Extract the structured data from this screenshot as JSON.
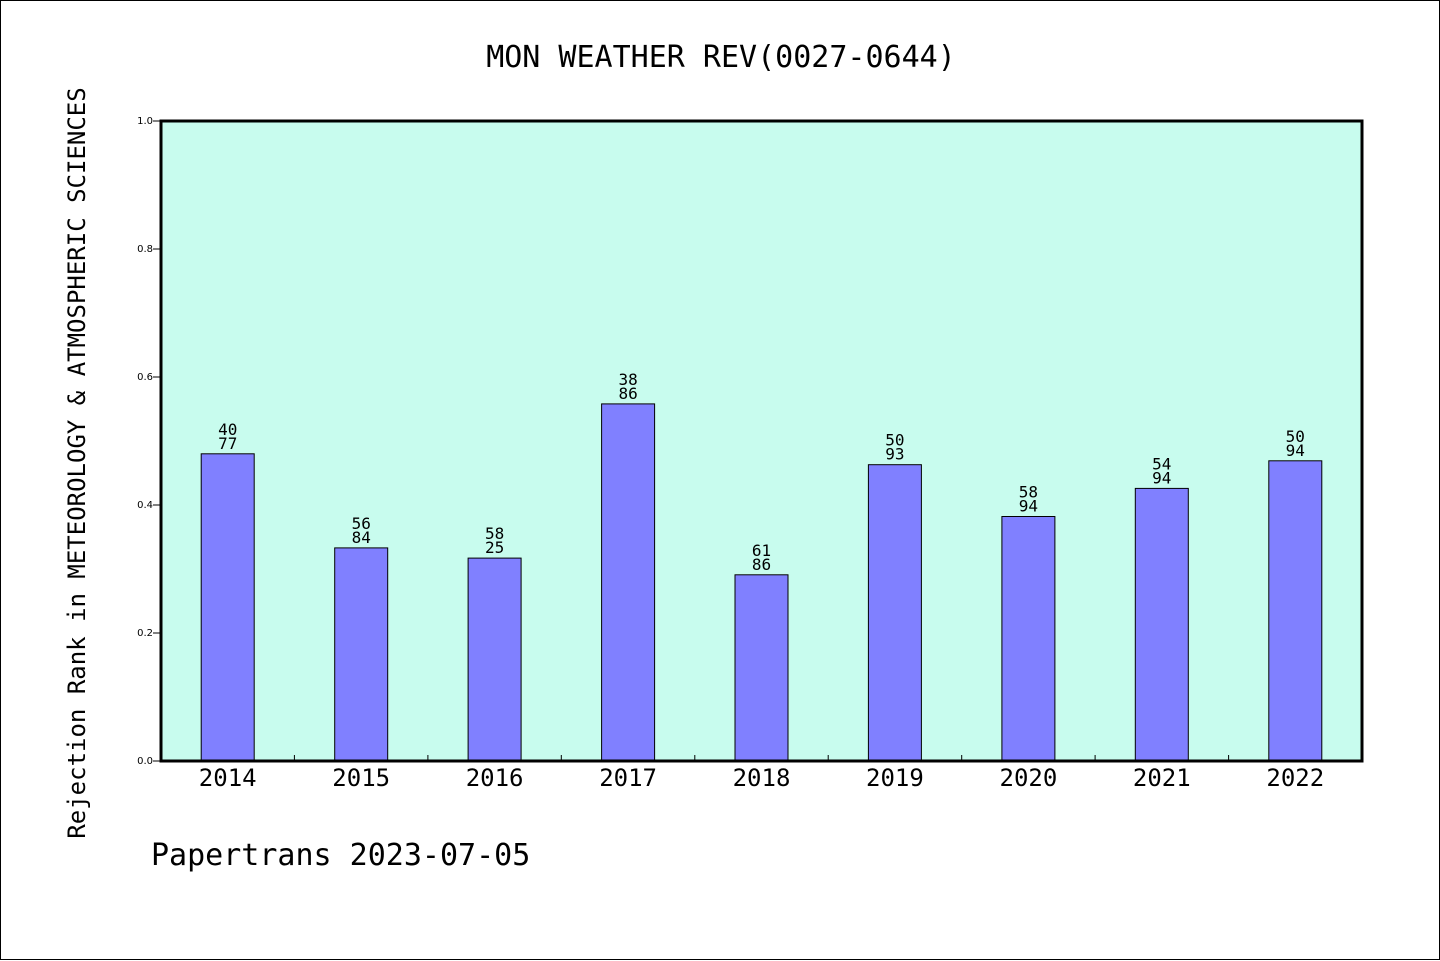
{
  "chart_data": {
    "type": "bar",
    "title": "MON WEATHER REV(0027-0644)",
    "xlabel": "",
    "ylabel": "Rejection Rank in METEOROLOGY & ATMOSPHERIC SCIENCES",
    "footer": "Papertrans 2023-07-05",
    "categories": [
      "2014",
      "2015",
      "2016",
      "2017",
      "2018",
      "2019",
      "2020",
      "2021",
      "2022"
    ],
    "values": [
      0.48,
      0.333,
      0.317,
      0.558,
      0.291,
      0.463,
      0.382,
      0.426,
      0.469
    ],
    "label_top": [
      "40",
      "56",
      "58",
      "38",
      "61",
      "50",
      "58",
      "54",
      "50"
    ],
    "label_bottom": [
      "77",
      "84",
      "25",
      "86",
      "86",
      "93",
      "94",
      "94",
      "94"
    ],
    "ylim": [
      0,
      1.0
    ],
    "yticks": [
      "0.0",
      "0.2",
      "0.4",
      "0.6",
      "0.8",
      "1.0"
    ],
    "grid": false,
    "colors": {
      "plot_background": "#c8fcee",
      "bar_fill": "#8080ff",
      "bar_stroke": "#000000"
    }
  }
}
